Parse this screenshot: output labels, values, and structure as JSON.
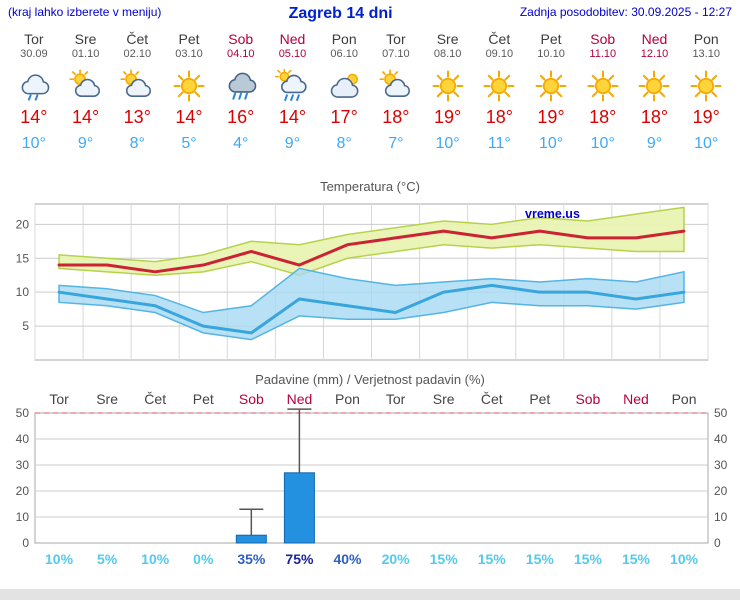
{
  "header": {
    "left_note": "(kraj lahko izberete v meniju)",
    "title": "Zagreb 14 dni",
    "updated": "Zadnja posodobitev: 30.09.2025 - 12:27"
  },
  "days": [
    {
      "name": "Tor",
      "date": "30.09",
      "weekend": false,
      "icon": "cloud-rain",
      "tmax_label": "14°",
      "tmin_label": "10°",
      "prob_label": "10%",
      "prob_color": "#55c9ec"
    },
    {
      "name": "Sre",
      "date": "01.10",
      "weekend": false,
      "icon": "sun-cloud",
      "tmax_label": "14°",
      "tmin_label": "9°",
      "prob_label": "5%",
      "prob_color": "#55c9ec"
    },
    {
      "name": "Čet",
      "date": "02.10",
      "weekend": false,
      "icon": "sun-cloud",
      "tmax_label": "13°",
      "tmin_label": "8°",
      "prob_label": "10%",
      "prob_color": "#55c9ec"
    },
    {
      "name": "Pet",
      "date": "03.10",
      "weekend": false,
      "icon": "sun",
      "tmax_label": "14°",
      "tmin_label": "5°",
      "prob_label": "0%",
      "prob_color": "#55c9ec"
    },
    {
      "name": "Sob",
      "date": "04.10",
      "weekend": true,
      "icon": "rain",
      "tmax_label": "16°",
      "tmin_label": "4°",
      "prob_label": "35%",
      "prob_color": "#2e5fc4"
    },
    {
      "name": "Ned",
      "date": "05.10",
      "weekend": true,
      "icon": "sun-rain",
      "tmax_label": "14°",
      "tmin_label": "9°",
      "prob_label": "75%",
      "prob_color": "#19249e"
    },
    {
      "name": "Pon",
      "date": "06.10",
      "weekend": false,
      "icon": "cloud",
      "tmax_label": "17°",
      "tmin_label": "8°",
      "prob_label": "40%",
      "prob_color": "#2e5fc4"
    },
    {
      "name": "Tor",
      "date": "07.10",
      "weekend": false,
      "icon": "sun-cloud",
      "tmax_label": "18°",
      "tmin_label": "7°",
      "prob_label": "20%",
      "prob_color": "#55c9ec"
    },
    {
      "name": "Sre",
      "date": "08.10",
      "weekend": false,
      "icon": "sun",
      "tmax_label": "19°",
      "tmin_label": "10°",
      "prob_label": "15%",
      "prob_color": "#55c9ec"
    },
    {
      "name": "Čet",
      "date": "09.10",
      "weekend": false,
      "icon": "sun",
      "tmax_label": "18°",
      "tmin_label": "11°",
      "prob_label": "15%",
      "prob_color": "#55c9ec"
    },
    {
      "name": "Pet",
      "date": "10.10",
      "weekend": false,
      "icon": "sun",
      "tmax_label": "19°",
      "tmin_label": "10°",
      "prob_label": "15%",
      "prob_color": "#55c9ec"
    },
    {
      "name": "Sob",
      "date": "11.10",
      "weekend": true,
      "icon": "sun",
      "tmax_label": "18°",
      "tmin_label": "10°",
      "prob_label": "15%",
      "prob_color": "#55c9ec"
    },
    {
      "name": "Ned",
      "date": "12.10",
      "weekend": true,
      "icon": "sun",
      "tmax_label": "18°",
      "tmin_label": "9°",
      "prob_label": "15%",
      "prob_color": "#55c9ec"
    },
    {
      "name": "Pon",
      "date": "13.10",
      "weekend": false,
      "icon": "sun",
      "tmax_label": "19°",
      "tmin_label": "10°",
      "prob_label": "10%",
      "prob_color": "#55c9ec"
    }
  ],
  "chart_data": [
    {
      "type": "line",
      "title": "Temperatura (°C)",
      "watermark": "vreme.us",
      "watermark_color": "#0000cc",
      "x_labels": [
        "Tor",
        "Sre",
        "Čet",
        "Pet",
        "Sob",
        "Ned",
        "Pon",
        "Tor",
        "Sre",
        "Čet",
        "Pet",
        "Sob",
        "Ned",
        "Pon"
      ],
      "ylim": [
        0,
        23
      ],
      "yticks": [
        5,
        10,
        15,
        20
      ],
      "grid": true,
      "series": [
        {
          "name": "Max temperatura",
          "color": "#cc2334",
          "values": [
            14,
            14,
            13,
            14,
            16,
            14,
            17,
            18,
            19,
            18,
            19,
            18,
            18,
            19
          ]
        },
        {
          "name": "Min temperatura",
          "color": "#38a6dc",
          "values": [
            10,
            9,
            8,
            5,
            4,
            9,
            8,
            7,
            10,
            11,
            10,
            10,
            9,
            10
          ]
        }
      ],
      "bands": [
        {
          "name": "Max razpon",
          "fill": "#e9f3b2",
          "edge": "#b6d24d",
          "upper": [
            15.5,
            15,
            14.5,
            15.5,
            17.5,
            17,
            18.5,
            19.5,
            20.5,
            20,
            21,
            20.5,
            21.5,
            22.5
          ],
          "lower": [
            13.5,
            13,
            12.5,
            13,
            14.5,
            12.5,
            15,
            16,
            17,
            16.5,
            17,
            16.5,
            16,
            16
          ]
        },
        {
          "name": "Min razpon",
          "fill": "#a6d9f2",
          "edge": "#54b4e4",
          "upper": [
            11,
            10.5,
            9.5,
            7,
            8,
            13.5,
            12,
            11,
            11.5,
            12,
            11.5,
            12,
            11.5,
            13
          ],
          "lower": [
            8.5,
            8,
            7,
            4,
            3,
            6.5,
            6,
            6,
            7,
            8.5,
            8,
            8,
            7.5,
            8.5
          ]
        }
      ]
    },
    {
      "type": "bar",
      "title": "Padavine (mm) / Verjetnost padavin (%)",
      "x_labels": [
        "Tor",
        "Sre",
        "Čet",
        "Pet",
        "Sob",
        "Ned",
        "Pon",
        "Tor",
        "Sre",
        "Čet",
        "Pet",
        "Sob",
        "Ned",
        "Pon"
      ],
      "ylim": [
        0,
        50
      ],
      "yticks": [
        0,
        10,
        20,
        30,
        40,
        50
      ],
      "bar_color": "#2490e0",
      "bar_edge": "#1166aa",
      "limit_line_color": "#ee8a97",
      "values": [
        0,
        0,
        0,
        0,
        3,
        27,
        0,
        0,
        0,
        0,
        0,
        0,
        0,
        0
      ],
      "whisker_max": [
        0,
        0,
        0,
        0,
        13,
        52,
        0,
        0,
        0,
        0,
        0,
        0,
        0,
        0
      ],
      "probabilities": [
        10,
        5,
        10,
        0,
        35,
        75,
        40,
        20,
        15,
        15,
        15,
        15,
        15,
        10
      ]
    }
  ]
}
